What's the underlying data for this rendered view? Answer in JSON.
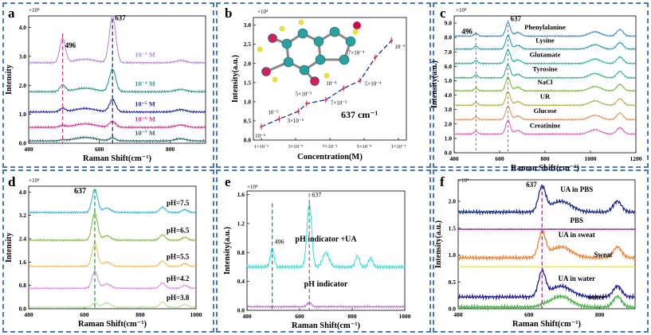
{
  "chart_data": [
    {
      "id": "a",
      "type": "line",
      "panel_letter": "a",
      "scale_label": "×10⁴",
      "xlabel": "Raman Shift(cm⁻¹)",
      "ylabel": "Intensity",
      "xlim": [
        400,
        900
      ],
      "ylim": [
        0,
        4.4
      ],
      "xticks": [
        400,
        600,
        800
      ],
      "yticks": [
        0.0,
        1.0,
        2.0,
        3.0,
        4.0
      ],
      "peaks": [
        {
          "x": 496,
          "label": "496",
          "color": "#c0407a"
        },
        {
          "x": 637,
          "label": "637",
          "color": "#1a2a9a"
        }
      ],
      "series": [
        {
          "name": "10⁻³ M",
          "color": "#b78ad8",
          "base": 2.78,
          "amps": [
            0.85,
            1.62
          ]
        },
        {
          "name": "10⁻⁴ M",
          "color": "#2a9a8a",
          "base": 1.78,
          "amps": [
            0.22,
            0.78
          ]
        },
        {
          "name": "10⁻⁵ M",
          "color": "#1a2a9a",
          "base": 1.08,
          "amps": [
            0.12,
            0.42
          ]
        },
        {
          "name": "10⁻⁶ M",
          "color": "#e0308a",
          "base": 0.55,
          "amps": [
            0.06,
            0.2
          ]
        },
        {
          "name": "10⁻⁷ M",
          "color": "#2a6a6a",
          "base": 0.08,
          "amps": [
            0.03,
            0.1
          ]
        }
      ]
    },
    {
      "id": "b",
      "type": "line",
      "panel_letter": "b",
      "scale_label": "×10⁴",
      "xlabel": "Concentration(M)",
      "ylabel": "Intensity(a.u.)",
      "xticks": [
        "1×10⁻⁶",
        "3×10⁻⁵",
        "7×10⁻⁵",
        "5×10⁻⁴",
        "1×10⁻³"
      ],
      "yticks": [
        0.0,
        0.5,
        1.0,
        1.5,
        2.0,
        2.5,
        3.0
      ],
      "ylim": [
        0,
        3.2
      ],
      "annotation": "637 cm⁻¹",
      "points": [
        {
          "label": "10⁻⁶",
          "x": 0.0,
          "y": 0.35
        },
        {
          "label": "10⁻⁵",
          "x": 0.13,
          "y": 0.55
        },
        {
          "label": "3×10⁻⁵",
          "x": 0.27,
          "y": 0.75
        },
        {
          "label": "5×10⁻⁵",
          "x": 0.33,
          "y": 0.95
        },
        {
          "label": "7×10⁻⁵",
          "x": 0.47,
          "y": 1.05
        },
        {
          "label": "10⁻⁴",
          "x": 0.6,
          "y": 1.35
        },
        {
          "label": "5×10⁻⁴",
          "x": 0.72,
          "y": 1.55
        },
        {
          "label": "7×10⁻⁴",
          "x": 0.83,
          "y": 2.15
        },
        {
          "label": "10⁻³",
          "x": 0.95,
          "y": 2.6
        }
      ]
    },
    {
      "id": "c",
      "type": "line",
      "panel_letter": "c",
      "scale_label": "×10⁴",
      "xlabel": "Raman Shift(cm⁻¹)",
      "ylabel": "Intensity(a.u.)",
      "xlim": [
        400,
        1200
      ],
      "ylim": [
        0,
        9.5
      ],
      "xticks": [
        400,
        600,
        800,
        1000,
        1200
      ],
      "yticks": [
        0.0,
        1.0,
        2.0,
        3.0,
        4.0,
        5.0,
        6.0,
        7.0,
        8.0,
        9.0
      ],
      "peaks": [
        {
          "x": 496,
          "label": "496",
          "color": "#d04050"
        },
        {
          "x": 637,
          "label": "637",
          "color": "#d04070"
        }
      ],
      "series": [
        {
          "name": "Phenylalanine",
          "color": "#3a8ad0",
          "base": 8.1
        },
        {
          "name": "Lysine",
          "color": "#1aa0b0",
          "base": 7.2
        },
        {
          "name": "Glutamate",
          "color": "#20b0a0",
          "base": 6.2
        },
        {
          "name": "Tyrosine",
          "color": "#30b080",
          "base": 5.2
        },
        {
          "name": "NaCl",
          "color": "#7ab840",
          "base": 4.3
        },
        {
          "name": "UR",
          "color": "#b0b040",
          "base": 3.3
        },
        {
          "name": "Glucose",
          "color": "#e09060",
          "base": 2.3
        },
        {
          "name": "Creatinine",
          "color": "#e060b0",
          "base": 1.3
        }
      ]
    },
    {
      "id": "d",
      "type": "line",
      "panel_letter": "d",
      "scale_label": "×10⁴",
      "xlabel": "Raman Shift(cm⁻¹)",
      "ylabel": "Intensity",
      "xlim": [
        400,
        1000
      ],
      "ylim": [
        0,
        4.2
      ],
      "xticks": [
        400,
        600,
        800,
        1000
      ],
      "yticks": [
        0.0,
        0.8,
        1.6,
        2.4,
        3.2,
        4.0
      ],
      "peaks": [
        {
          "x": 637,
          "label": "637",
          "color": "#2a9a4a"
        }
      ],
      "series": [
        {
          "name": "pH=7.5",
          "color": "#3ab8d8",
          "base": 3.3,
          "amp": 0.8
        },
        {
          "name": "pH=6.5",
          "color": "#88c040",
          "base": 2.35,
          "amp": 0.95
        },
        {
          "name": "pH=5.5",
          "color": "#f0c060",
          "base": 1.45,
          "amp": 0.8
        },
        {
          "name": "pH=4.2",
          "color": "#e090e0",
          "base": 0.7,
          "amp": 0.6
        },
        {
          "name": "pH=3.8",
          "color": "#c0e0a0",
          "base": 0.05,
          "amp": 0.15
        }
      ]
    },
    {
      "id": "e",
      "type": "line",
      "panel_letter": "e",
      "scale_label": "×10⁴",
      "xlabel": "Raman Shift(cm⁻¹)",
      "ylabel": "Intensity(a.u.)",
      "xlim": [
        400,
        1000
      ],
      "ylim": [
        0,
        1.65
      ],
      "xticks": [
        400,
        600,
        800,
        1000
      ],
      "yticks": [
        0.0,
        0.4,
        0.8,
        1.2,
        1.6
      ],
      "peaks": [
        {
          "x": 496,
          "label": "496",
          "color": "#2a8a7a"
        },
        {
          "x": 637,
          "label": "637",
          "color": "#777777"
        }
      ],
      "series": [
        {
          "name": "pH indicator +UA",
          "color": "#40e0d8",
          "base": 0.6
        },
        {
          "name": "pH indicator",
          "color": "#c070c8",
          "base": 0.05
        }
      ]
    },
    {
      "id": "f",
      "type": "line",
      "panel_letter": "f",
      "scale_label": "×10⁴",
      "xlabel": "Raman Shift(cm⁻¹)",
      "ylabel": "Intensity(a.u.)",
      "xlim": [
        400,
        900
      ],
      "ylim": [
        0,
        2.4
      ],
      "xticks": [
        400,
        600,
        800
      ],
      "yticks": [
        0.0,
        0.5,
        1.0,
        1.5,
        2.0
      ],
      "peaks": [
        {
          "x": 637,
          "label": "637",
          "color": "#a03090"
        }
      ],
      "series": [
        {
          "name": "UA in PBS",
          "color": "#1a2a8a",
          "base": 1.8
        },
        {
          "name": "PBS",
          "color": "#8a2a9a",
          "base": 1.48
        },
        {
          "name": "UA in sweat",
          "color": "#f08030",
          "base": 0.95
        },
        {
          "name": "Sweat",
          "color": "#f0f000",
          "base": 0.78
        },
        {
          "name": "UA in water",
          "color": "#1a1a9a",
          "base": 0.22
        },
        {
          "name": "water",
          "color": "#40b040",
          "base": 0.03
        }
      ]
    }
  ]
}
